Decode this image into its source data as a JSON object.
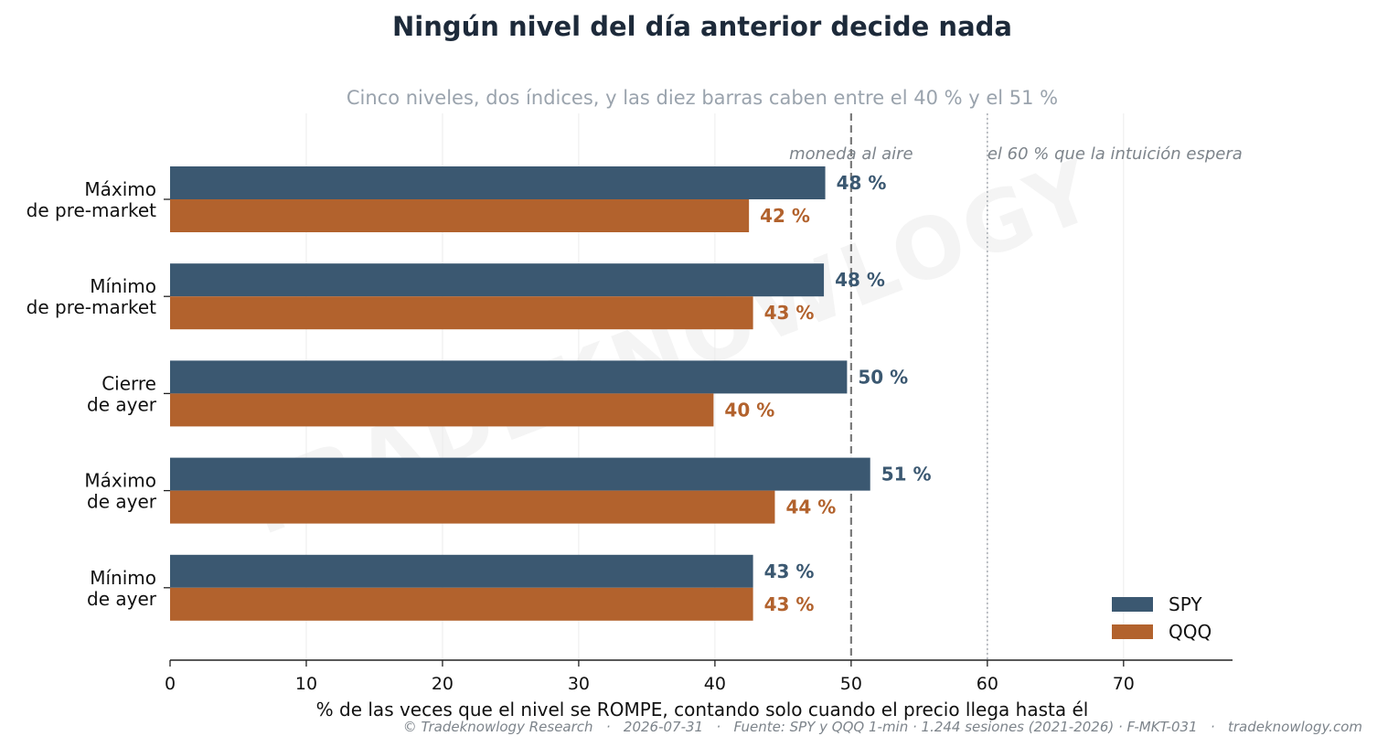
{
  "chart_data": {
    "type": "bar",
    "orientation": "horizontal",
    "title": "Ningún nivel del día anterior decide nada",
    "subtitle": "Cinco niveles, dos índices, y las diez barras caben entre el 40 % y el 51 %",
    "xlabel": "% de las veces que el nivel se ROMPE, contando solo cuando el precio llega hasta él",
    "xlim": [
      0,
      78
    ],
    "xticks": [
      0,
      10,
      20,
      30,
      40,
      50,
      60,
      70
    ],
    "grid": "vertical",
    "legend_position": "bottom-right",
    "categories": [
      [
        "Máximo",
        "de pre-market"
      ],
      [
        "Mínimo",
        "de pre-market"
      ],
      [
        "Cierre",
        "de ayer"
      ],
      [
        "Máximo",
        "de ayer"
      ],
      [
        "Mínimo",
        "de ayer"
      ]
    ],
    "series": [
      {
        "name": "SPY",
        "color": "#3b5871",
        "values": [
          48.1,
          48.0,
          49.7,
          51.4,
          42.8
        ],
        "labels": [
          "48 %",
          "48 %",
          "50 %",
          "51 %",
          "43 %"
        ]
      },
      {
        "name": "QQQ",
        "color": "#b2622d",
        "values": [
          42.5,
          42.8,
          39.9,
          44.4,
          42.8
        ],
        "labels": [
          "42 %",
          "43 %",
          "40 %",
          "44 %",
          "43 %"
        ]
      }
    ],
    "reference_lines": [
      {
        "x": 50,
        "style": "dashed",
        "label": "moneda al aire"
      },
      {
        "x": 60,
        "style": "dotted",
        "label": "el 60 % que la intuición espera"
      }
    ]
  },
  "watermark": "TRADEKNOWLOGY",
  "footer": "© Tradeknowlogy Research   ·   2026-07-31   ·   Fuente: SPY y QQQ 1-min · 1.244 sesiones (2021-2026) · F-MKT-031   ·   tradeknowlogy.com"
}
